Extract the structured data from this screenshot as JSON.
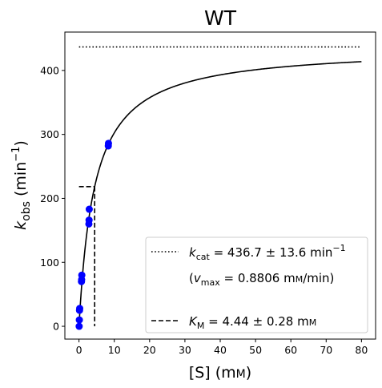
{
  "chart_data": {
    "type": "scatter",
    "title": "WT",
    "xlabel": {
      "main": "[S] (m",
      "small": "M",
      "tail": ")"
    },
    "ylabel": {
      "k": "k",
      "sub": "obs",
      "unit": " (min",
      "sup": "−1",
      "close": ")"
    },
    "xlim": [
      -4,
      84
    ],
    "ylim": [
      -20,
      460
    ],
    "xticks": [
      0,
      10,
      20,
      30,
      40,
      50,
      60,
      70,
      80
    ],
    "yticks": [
      0,
      100,
      200,
      300,
      400
    ],
    "grid": false,
    "legend_position": "lower-right",
    "kcat": 436.7,
    "km": 4.44,
    "fit_x_range": [
      0,
      80
    ],
    "hline_x_range": [
      0,
      80
    ],
    "km_marker": {
      "x": 4.44,
      "y": 218.35,
      "x_start": 0
    },
    "points": [
      {
        "x": 0.05,
        "y": 0
      },
      {
        "x": 0.1,
        "y": 10
      },
      {
        "x": 0.15,
        "y": 25
      },
      {
        "x": 0.2,
        "y": 28
      },
      {
        "x": 0.7,
        "y": 70
      },
      {
        "x": 0.75,
        "y": 73
      },
      {
        "x": 0.8,
        "y": 80
      },
      {
        "x": 2.8,
        "y": 160
      },
      {
        "x": 2.85,
        "y": 166
      },
      {
        "x": 2.9,
        "y": 183
      },
      {
        "x": 8.3,
        "y": 282
      },
      {
        "x": 8.35,
        "y": 286
      }
    ],
    "legend": {
      "kcat": {
        "k": "k",
        "sub": "cat",
        "text": " = 436.7 ± 13.6 min",
        "sup": "−1"
      },
      "vmax": {
        "open": "(",
        "v": "v",
        "sub": "max",
        "text": " = 0.8806 m",
        "small": "M",
        "tail": "/min)"
      },
      "km": {
        "k": "K",
        "sub": "M",
        "text": " = 4.44 ± 0.28 m",
        "small": "M"
      }
    },
    "colors": {
      "points": "#0000ff",
      "lines": "#000000",
      "legend_border": "#cccccc"
    }
  }
}
